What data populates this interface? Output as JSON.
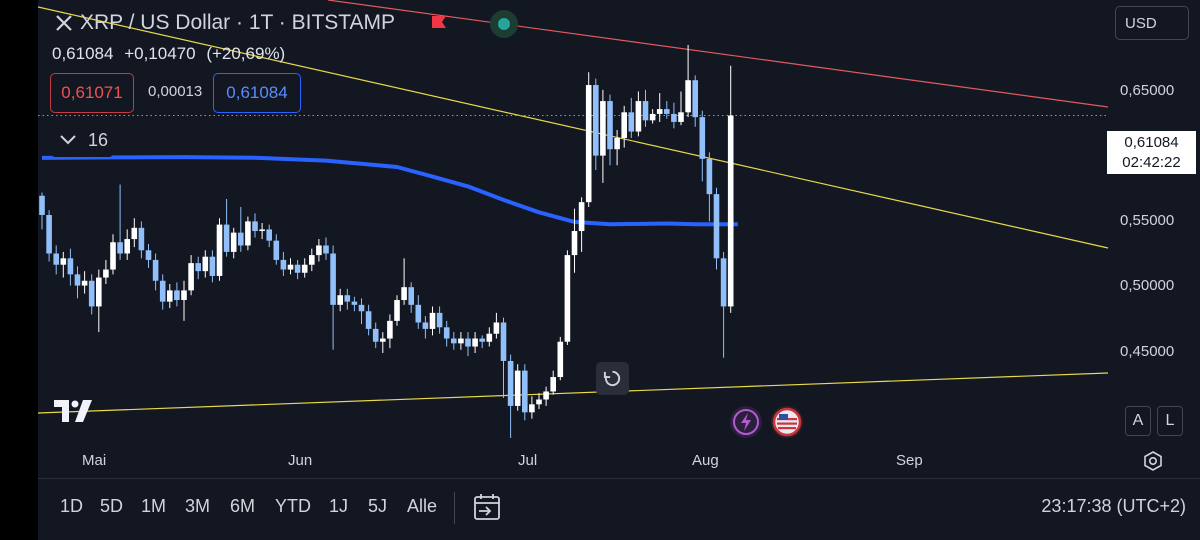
{
  "header": {
    "title": "XRP / US Dollar · 1T · BITSTAMP",
    "last": "0,61084",
    "change": "+0,10470",
    "change_pct": "(+20,69%)",
    "bid": "0,61071",
    "spread": "0,00013",
    "ask": "0,61084",
    "indicator_count": "16",
    "currency": "USD"
  },
  "colors": {
    "background": "#131722",
    "candle_up": "#ffffff",
    "candle_down": "#90bff9",
    "moving_average": "#2962ff",
    "trendline_yellow": "#e8d84a",
    "trendline_red": "#e05a5e",
    "bid": "#ef5350",
    "ask": "#5b8cff"
  },
  "chart_data": {
    "type": "candlestick",
    "symbol": "XRP / US Dollar",
    "interval": "1T",
    "exchange": "BITSTAMP",
    "y_ticks": [
      "0,65000",
      "0,55000",
      "0,50000",
      "0,45000"
    ],
    "ylim": [
      0.41,
      0.683
    ],
    "x_ticks": [
      "Mai",
      "Jun",
      "Jul",
      "Aug",
      "Sep"
    ],
    "current_price": "0,61084",
    "countdown": "02:42:22",
    "moving_average": [
      [
        0,
        0.5846
      ],
      [
        10,
        0.5849
      ],
      [
        20,
        0.5851
      ],
      [
        30,
        0.5847
      ],
      [
        40,
        0.5829
      ],
      [
        50,
        0.5789
      ],
      [
        55,
        0.5729
      ],
      [
        60,
        0.5668
      ],
      [
        65,
        0.5584
      ],
      [
        70,
        0.5507
      ],
      [
        75,
        0.5447
      ],
      [
        80,
        0.5432
      ],
      [
        88,
        0.5437
      ],
      [
        92,
        0.5432
      ],
      [
        98,
        0.5432
      ]
    ],
    "candles": [
      [
        0.561,
        0.549,
        0.563,
        0.54
      ],
      [
        0.549,
        0.525,
        0.552,
        0.52
      ],
      [
        0.525,
        0.518,
        0.53,
        0.512
      ],
      [
        0.518,
        0.522,
        0.526,
        0.51
      ],
      [
        0.522,
        0.512,
        0.528,
        0.505
      ],
      [
        0.512,
        0.505,
        0.517,
        0.497
      ],
      [
        0.505,
        0.508,
        0.514,
        0.5
      ],
      [
        0.508,
        0.492,
        0.512,
        0.487
      ],
      [
        0.492,
        0.51,
        0.515,
        0.476
      ],
      [
        0.51,
        0.515,
        0.521,
        0.506
      ],
      [
        0.515,
        0.532,
        0.537,
        0.512
      ],
      [
        0.532,
        0.525,
        0.568,
        0.521
      ],
      [
        0.525,
        0.534,
        0.54,
        0.521
      ],
      [
        0.534,
        0.541,
        0.547,
        0.529
      ],
      [
        0.541,
        0.527,
        0.545,
        0.522
      ],
      [
        0.527,
        0.521,
        0.531,
        0.516
      ],
      [
        0.521,
        0.508,
        0.525,
        0.502
      ],
      [
        0.508,
        0.495,
        0.512,
        0.49
      ],
      [
        0.495,
        0.502,
        0.506,
        0.491
      ],
      [
        0.502,
        0.496,
        0.507,
        0.492
      ],
      [
        0.496,
        0.502,
        0.508,
        0.483
      ],
      [
        0.502,
        0.519,
        0.524,
        0.499
      ],
      [
        0.519,
        0.514,
        0.523,
        0.509
      ],
      [
        0.514,
        0.523,
        0.527,
        0.51
      ],
      [
        0.523,
        0.511,
        0.527,
        0.507
      ],
      [
        0.511,
        0.543,
        0.547,
        0.508
      ],
      [
        0.543,
        0.526,
        0.559,
        0.523
      ],
      [
        0.526,
        0.538,
        0.541,
        0.522
      ],
      [
        0.538,
        0.53,
        0.554,
        0.526
      ],
      [
        0.53,
        0.545,
        0.548,
        0.527
      ],
      [
        0.545,
        0.539,
        0.55,
        0.535
      ],
      [
        0.539,
        0.54,
        0.544,
        0.534
      ],
      [
        0.54,
        0.533,
        0.543,
        0.529
      ],
      [
        0.533,
        0.521,
        0.537,
        0.518
      ],
      [
        0.521,
        0.515,
        0.526,
        0.511
      ],
      [
        0.515,
        0.518,
        0.522,
        0.512
      ],
      [
        0.518,
        0.513,
        0.521,
        0.509
      ],
      [
        0.513,
        0.518,
        0.522,
        0.51
      ],
      [
        0.518,
        0.524,
        0.528,
        0.514
      ],
      [
        0.524,
        0.53,
        0.534,
        0.52
      ],
      [
        0.53,
        0.525,
        0.535,
        0.521
      ],
      [
        0.525,
        0.493,
        0.53,
        0.465
      ],
      [
        0.493,
        0.499,
        0.503,
        0.489
      ],
      [
        0.499,
        0.495,
        0.503,
        0.49
      ],
      [
        0.495,
        0.493,
        0.498,
        0.489
      ],
      [
        0.493,
        0.489,
        0.497,
        0.481
      ],
      [
        0.489,
        0.478,
        0.493,
        0.474
      ],
      [
        0.478,
        0.47,
        0.482,
        0.466
      ],
      [
        0.47,
        0.472,
        0.476,
        0.463
      ],
      [
        0.472,
        0.483,
        0.487,
        0.466
      ],
      [
        0.483,
        0.496,
        0.499,
        0.48
      ],
      [
        0.496,
        0.504,
        0.522,
        0.493
      ],
      [
        0.504,
        0.493,
        0.507,
        0.488
      ],
      [
        0.493,
        0.482,
        0.499,
        0.478
      ],
      [
        0.482,
        0.478,
        0.486,
        0.472
      ],
      [
        0.478,
        0.488,
        0.492,
        0.474
      ],
      [
        0.488,
        0.479,
        0.492,
        0.475
      ],
      [
        0.479,
        0.472,
        0.483,
        0.467
      ],
      [
        0.472,
        0.469,
        0.476,
        0.465
      ],
      [
        0.469,
        0.472,
        0.476,
        0.465
      ],
      [
        0.472,
        0.467,
        0.476,
        0.461
      ],
      [
        0.467,
        0.472,
        0.476,
        0.463
      ],
      [
        0.472,
        0.47,
        0.474,
        0.466
      ],
      [
        0.47,
        0.475,
        0.479,
        0.467
      ],
      [
        0.475,
        0.482,
        0.488,
        0.472
      ],
      [
        0.482,
        0.458,
        0.485,
        0.435
      ],
      [
        0.458,
        0.43,
        0.462,
        0.41
      ],
      [
        0.43,
        0.452,
        0.456,
        0.427
      ],
      [
        0.452,
        0.426,
        0.456,
        0.421
      ],
      [
        0.426,
        0.431,
        0.436,
        0.422
      ],
      [
        0.431,
        0.434,
        0.438,
        0.428
      ],
      [
        0.434,
        0.439,
        0.442,
        0.43
      ],
      [
        0.439,
        0.448,
        0.452,
        0.437
      ],
      [
        0.448,
        0.47,
        0.473,
        0.446
      ],
      [
        0.47,
        0.524,
        0.527,
        0.468
      ],
      [
        0.524,
        0.539,
        0.553,
        0.513
      ],
      [
        0.539,
        0.557,
        0.56,
        0.526
      ],
      [
        0.557,
        0.63,
        0.638,
        0.554
      ],
      [
        0.63,
        0.586,
        0.634,
        0.577
      ],
      [
        0.586,
        0.62,
        0.627,
        0.569
      ],
      [
        0.62,
        0.59,
        0.624,
        0.58
      ],
      [
        0.59,
        0.597,
        0.602,
        0.58
      ],
      [
        0.597,
        0.613,
        0.617,
        0.591
      ],
      [
        0.613,
        0.601,
        0.622,
        0.597
      ],
      [
        0.601,
        0.62,
        0.626,
        0.598
      ],
      [
        0.62,
        0.608,
        0.627,
        0.604
      ],
      [
        0.608,
        0.612,
        0.615,
        0.606
      ],
      [
        0.612,
        0.615,
        0.625,
        0.607
      ],
      [
        0.615,
        0.612,
        0.62,
        0.609
      ],
      [
        0.612,
        0.607,
        0.619,
        0.603
      ],
      [
        0.607,
        0.613,
        0.626,
        0.605
      ],
      [
        0.613,
        0.633,
        0.655,
        0.61
      ],
      [
        0.633,
        0.61,
        0.636,
        0.604
      ],
      [
        0.61,
        0.584,
        0.614,
        0.57
      ],
      [
        0.584,
        0.562,
        0.588,
        0.545
      ],
      [
        0.562,
        0.522,
        0.566,
        0.515
      ],
      [
        0.522,
        0.492,
        0.526,
        0.46
      ],
      [
        0.492,
        0.611,
        0.642,
        0.488
      ]
    ]
  },
  "toolbar": {
    "ranges": [
      "1D",
      "5D",
      "1M",
      "3M",
      "6M",
      "YTD",
      "1J",
      "5J",
      "Alle"
    ],
    "clock": "23:17:38 (UTC+2)"
  },
  "scale": {
    "auto": "A",
    "log": "L"
  }
}
